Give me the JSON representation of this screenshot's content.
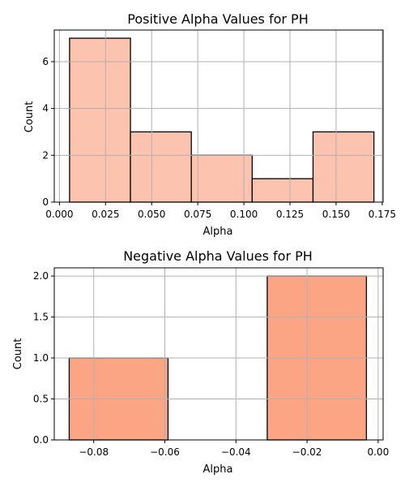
{
  "chart_data": [
    {
      "type": "bar",
      "subtype": "histogram",
      "title": "Positive Alpha Values for PH",
      "xlabel": "Alpha",
      "ylabel": "Count",
      "color": "#fcc4ae",
      "xlim": [
        -0.0028,
        0.1755
      ],
      "ylim": [
        0,
        7.35
      ],
      "xticks": [
        0.0,
        0.025,
        0.05,
        0.075,
        0.1,
        0.125,
        0.15,
        0.175
      ],
      "xtick_labels": [
        "0.000",
        "0.025",
        "0.050",
        "0.075",
        "0.100",
        "0.125",
        "0.150",
        "0.175"
      ],
      "yticks": [
        0,
        2,
        4,
        6
      ],
      "ytick_labels": [
        "0",
        "2",
        "4",
        "6"
      ],
      "grid": true,
      "bins": [
        {
          "x0": 0.0055,
          "x1": 0.0385,
          "count": 7
        },
        {
          "x0": 0.0385,
          "x1": 0.0715,
          "count": 3
        },
        {
          "x0": 0.0715,
          "x1": 0.1045,
          "count": 2
        },
        {
          "x0": 0.1045,
          "x1": 0.1375,
          "count": 1
        },
        {
          "x0": 0.1375,
          "x1": 0.1705,
          "count": 3
        }
      ]
    },
    {
      "type": "bar",
      "subtype": "histogram",
      "title": "Negative Alpha Values for PH",
      "xlabel": "Alpha",
      "ylabel": "Count",
      "color": "#fca584",
      "xlim": [
        -0.0911,
        0.0014
      ],
      "ylim": [
        0,
        2.1
      ],
      "xticks": [
        -0.08,
        -0.06,
        -0.04,
        -0.02,
        0.0
      ],
      "xtick_labels": [
        "−0.08",
        "−0.06",
        "−0.04",
        "−0.02",
        "0.00"
      ],
      "yticks": [
        0,
        0.5,
        1.0,
        1.5,
        2.0
      ],
      "ytick_labels": [
        "0.0",
        "0.5",
        "1.0",
        "1.5",
        "2.0"
      ],
      "grid": true,
      "bins": [
        {
          "x0": -0.0869,
          "x1": -0.0591,
          "count": 1
        },
        {
          "x0": -0.0591,
          "x1": -0.0312,
          "count": 0
        },
        {
          "x0": -0.0312,
          "x1": -0.0033,
          "count": 2
        }
      ]
    }
  ]
}
